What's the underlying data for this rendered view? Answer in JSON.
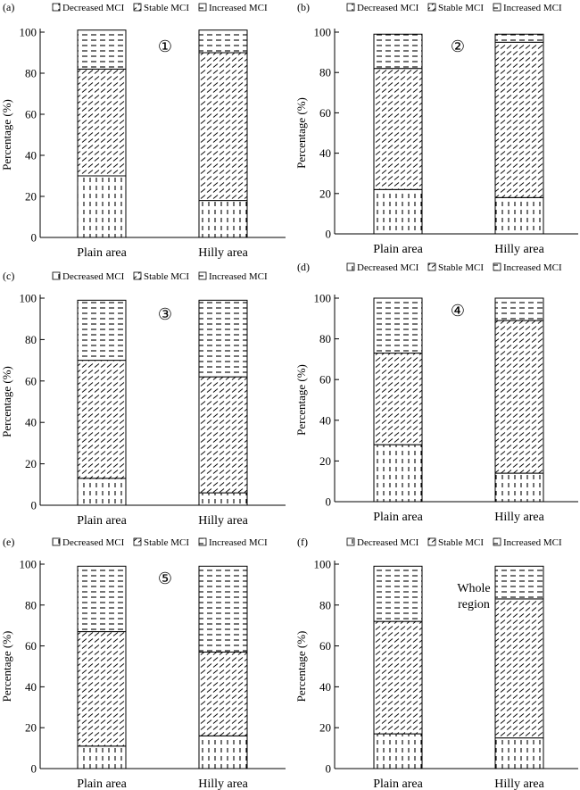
{
  "figure": {
    "legend_labels": [
      "Decreased MCI",
      "Stable MCI",
      "Increased MCI"
    ],
    "categories": [
      "Plain area",
      "Hilly area"
    ],
    "ylabel": "Percentage (%)",
    "yticks": [
      "0",
      "20",
      "40",
      "60",
      "80",
      "100"
    ]
  },
  "chart_data": [
    {
      "type": "bar",
      "stacked": true,
      "panel_label": "(a)",
      "annotation": "①",
      "categories": [
        "Plain area",
        "Hilly area"
      ],
      "ylabel": "Percentage (%)",
      "ylim": [
        0,
        100
      ],
      "legend": [
        "Decreased MCI",
        "Stable MCI",
        "Increased MCI"
      ],
      "legend_position": "top",
      "series": [
        {
          "name": "Decreased MCI",
          "values": [
            30,
            18
          ]
        },
        {
          "name": "Stable MCI",
          "values": [
            52,
            72
          ]
        },
        {
          "name": "Increased MCI",
          "values": [
            19,
            11
          ]
        }
      ]
    },
    {
      "type": "bar",
      "stacked": true,
      "panel_label": "(b)",
      "annotation": "②",
      "categories": [
        "Plain area",
        "Hilly area"
      ],
      "ylabel": "Percentage (%)",
      "ylim": [
        0,
        100
      ],
      "legend": [
        "Decreased MCI",
        "Stable MCI",
        "Increased MCI"
      ],
      "legend_position": "top",
      "series": [
        {
          "name": "Decreased MCI",
          "values": [
            22,
            18
          ]
        },
        {
          "name": "Stable MCI",
          "values": [
            60,
            77
          ]
        },
        {
          "name": "Increased MCI",
          "values": [
            17,
            4
          ]
        }
      ]
    },
    {
      "type": "bar",
      "stacked": true,
      "panel_label": "(c)",
      "annotation": "③",
      "categories": [
        "Plain area",
        "Hilly area"
      ],
      "ylabel": "Percentage (%)",
      "ylim": [
        0,
        100
      ],
      "legend": [
        "Decreased MCI",
        "Stable MCI",
        "Increased MCI"
      ],
      "legend_position": "top",
      "series": [
        {
          "name": "Decreased MCI",
          "values": [
            13,
            6
          ]
        },
        {
          "name": "Stable MCI",
          "values": [
            57,
            56
          ]
        },
        {
          "name": "Increased MCI",
          "values": [
            29,
            37
          ]
        }
      ]
    },
    {
      "type": "bar",
      "stacked": true,
      "panel_label": "(d)",
      "annotation": "④",
      "categories": [
        "Plain area",
        "Hilly area"
      ],
      "ylabel": "Percentage (%)",
      "ylim": [
        0,
        100
      ],
      "legend": [
        "Decreased MCI",
        "Stable MCI",
        "Increased MCI"
      ],
      "legend_position": "top",
      "series": [
        {
          "name": "Decreased MCI",
          "values": [
            28,
            14
          ]
        },
        {
          "name": "Stable MCI",
          "values": [
            45,
            75
          ]
        },
        {
          "name": "Increased MCI",
          "values": [
            27,
            11
          ]
        }
      ]
    },
    {
      "type": "bar",
      "stacked": true,
      "panel_label": "(e)",
      "annotation": "⑤",
      "categories": [
        "Plain area",
        "Hilly area"
      ],
      "ylabel": "Percentage (%)",
      "ylim": [
        0,
        100
      ],
      "legend": [
        "Decreased MCI",
        "Stable MCI",
        "Increased MCI"
      ],
      "legend_position": "top",
      "series": [
        {
          "name": "Decreased MCI",
          "values": [
            11,
            16
          ]
        },
        {
          "name": "Stable MCI",
          "values": [
            56,
            41
          ]
        },
        {
          "name": "Increased MCI",
          "values": [
            32,
            42
          ]
        }
      ]
    },
    {
      "type": "bar",
      "stacked": true,
      "panel_label": "(f)",
      "annotation": "Whole region",
      "categories": [
        "Plain area",
        "Hilly area"
      ],
      "ylabel": "Percentage (%)",
      "ylim": [
        0,
        100
      ],
      "legend": [
        "Decreased MCI",
        "Stable MCI",
        "Increased MCI"
      ],
      "legend_position": "top",
      "series": [
        {
          "name": "Decreased MCI",
          "values": [
            17,
            15
          ]
        },
        {
          "name": "Stable MCI",
          "values": [
            55,
            68
          ]
        },
        {
          "name": "Increased MCI",
          "values": [
            27,
            16
          ]
        }
      ]
    }
  ]
}
